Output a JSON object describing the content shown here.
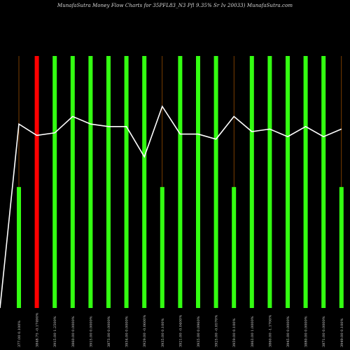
{
  "chart_data": {
    "type": "bar",
    "title": "MunafaSutra  Money Flow  Charts for 35PFL83_N3                        Pfl 9.35% Sr Iv   20033) MunafaSutra.com",
    "colors": {
      "up": "#33ff11",
      "down": "#ff0000",
      "line": "#ffffff",
      "wick": "#cc6600",
      "background": "#000000"
    },
    "bars": [
      {
        "label": "377.00 0.100%",
        "value": 0.48,
        "color": "green",
        "line": 0.73
      },
      {
        "label": "3848.75 -0.17490%",
        "value": 1.0,
        "color": "red",
        "line": 0.685
      },
      {
        "label": "3915.00 1.2500%",
        "value": 1.0,
        "color": "green",
        "line": 0.695
      },
      {
        "label": "3860.00 0.0000%",
        "value": 1.0,
        "color": "green",
        "line": 0.76
      },
      {
        "label": "3915.00 0.0000%",
        "value": 1.0,
        "color": "green",
        "line": 0.73
      },
      {
        "label": "3873.00 0.0000%",
        "value": 1.0,
        "color": "green",
        "line": 0.72
      },
      {
        "label": "3934.00 0.0000%",
        "value": 1.0,
        "color": "green",
        "line": 0.72
      },
      {
        "label": "3929.00 -0.0600%",
        "value": 1.0,
        "color": "green",
        "line": 0.6
      },
      {
        "label": "3935.00 0.100%",
        "value": 0.48,
        "color": "green",
        "line": 0.8
      },
      {
        "label": "3921.00 -0.0400%",
        "value": 1.0,
        "color": "green",
        "line": 0.69
      },
      {
        "label": "3935.00 0.0960%",
        "value": 1.0,
        "color": "green",
        "line": 0.69
      },
      {
        "label": "3925.00 -0.0570%",
        "value": 1.0,
        "color": "green",
        "line": 0.67
      },
      {
        "label": "3959.00 0.100%",
        "value": 0.48,
        "color": "green",
        "line": 0.76
      },
      {
        "label": "3863.00 1.0000%",
        "value": 1.0,
        "color": "green",
        "line": 0.7
      },
      {
        "label": "3860.00 -1.1700%",
        "value": 1.0,
        "color": "green",
        "line": 0.71
      },
      {
        "label": "3945.00 0.0000%",
        "value": 1.0,
        "color": "green",
        "line": 0.68
      },
      {
        "label": "3880.00 0.0000%",
        "value": 1.0,
        "color": "green",
        "line": 0.72
      },
      {
        "label": "3871.00 0.0000%",
        "value": 1.0,
        "color": "green",
        "line": 0.68
      },
      {
        "label": "3949.00 0.100%",
        "value": 0.48,
        "color": "green",
        "line": 0.71
      }
    ]
  }
}
